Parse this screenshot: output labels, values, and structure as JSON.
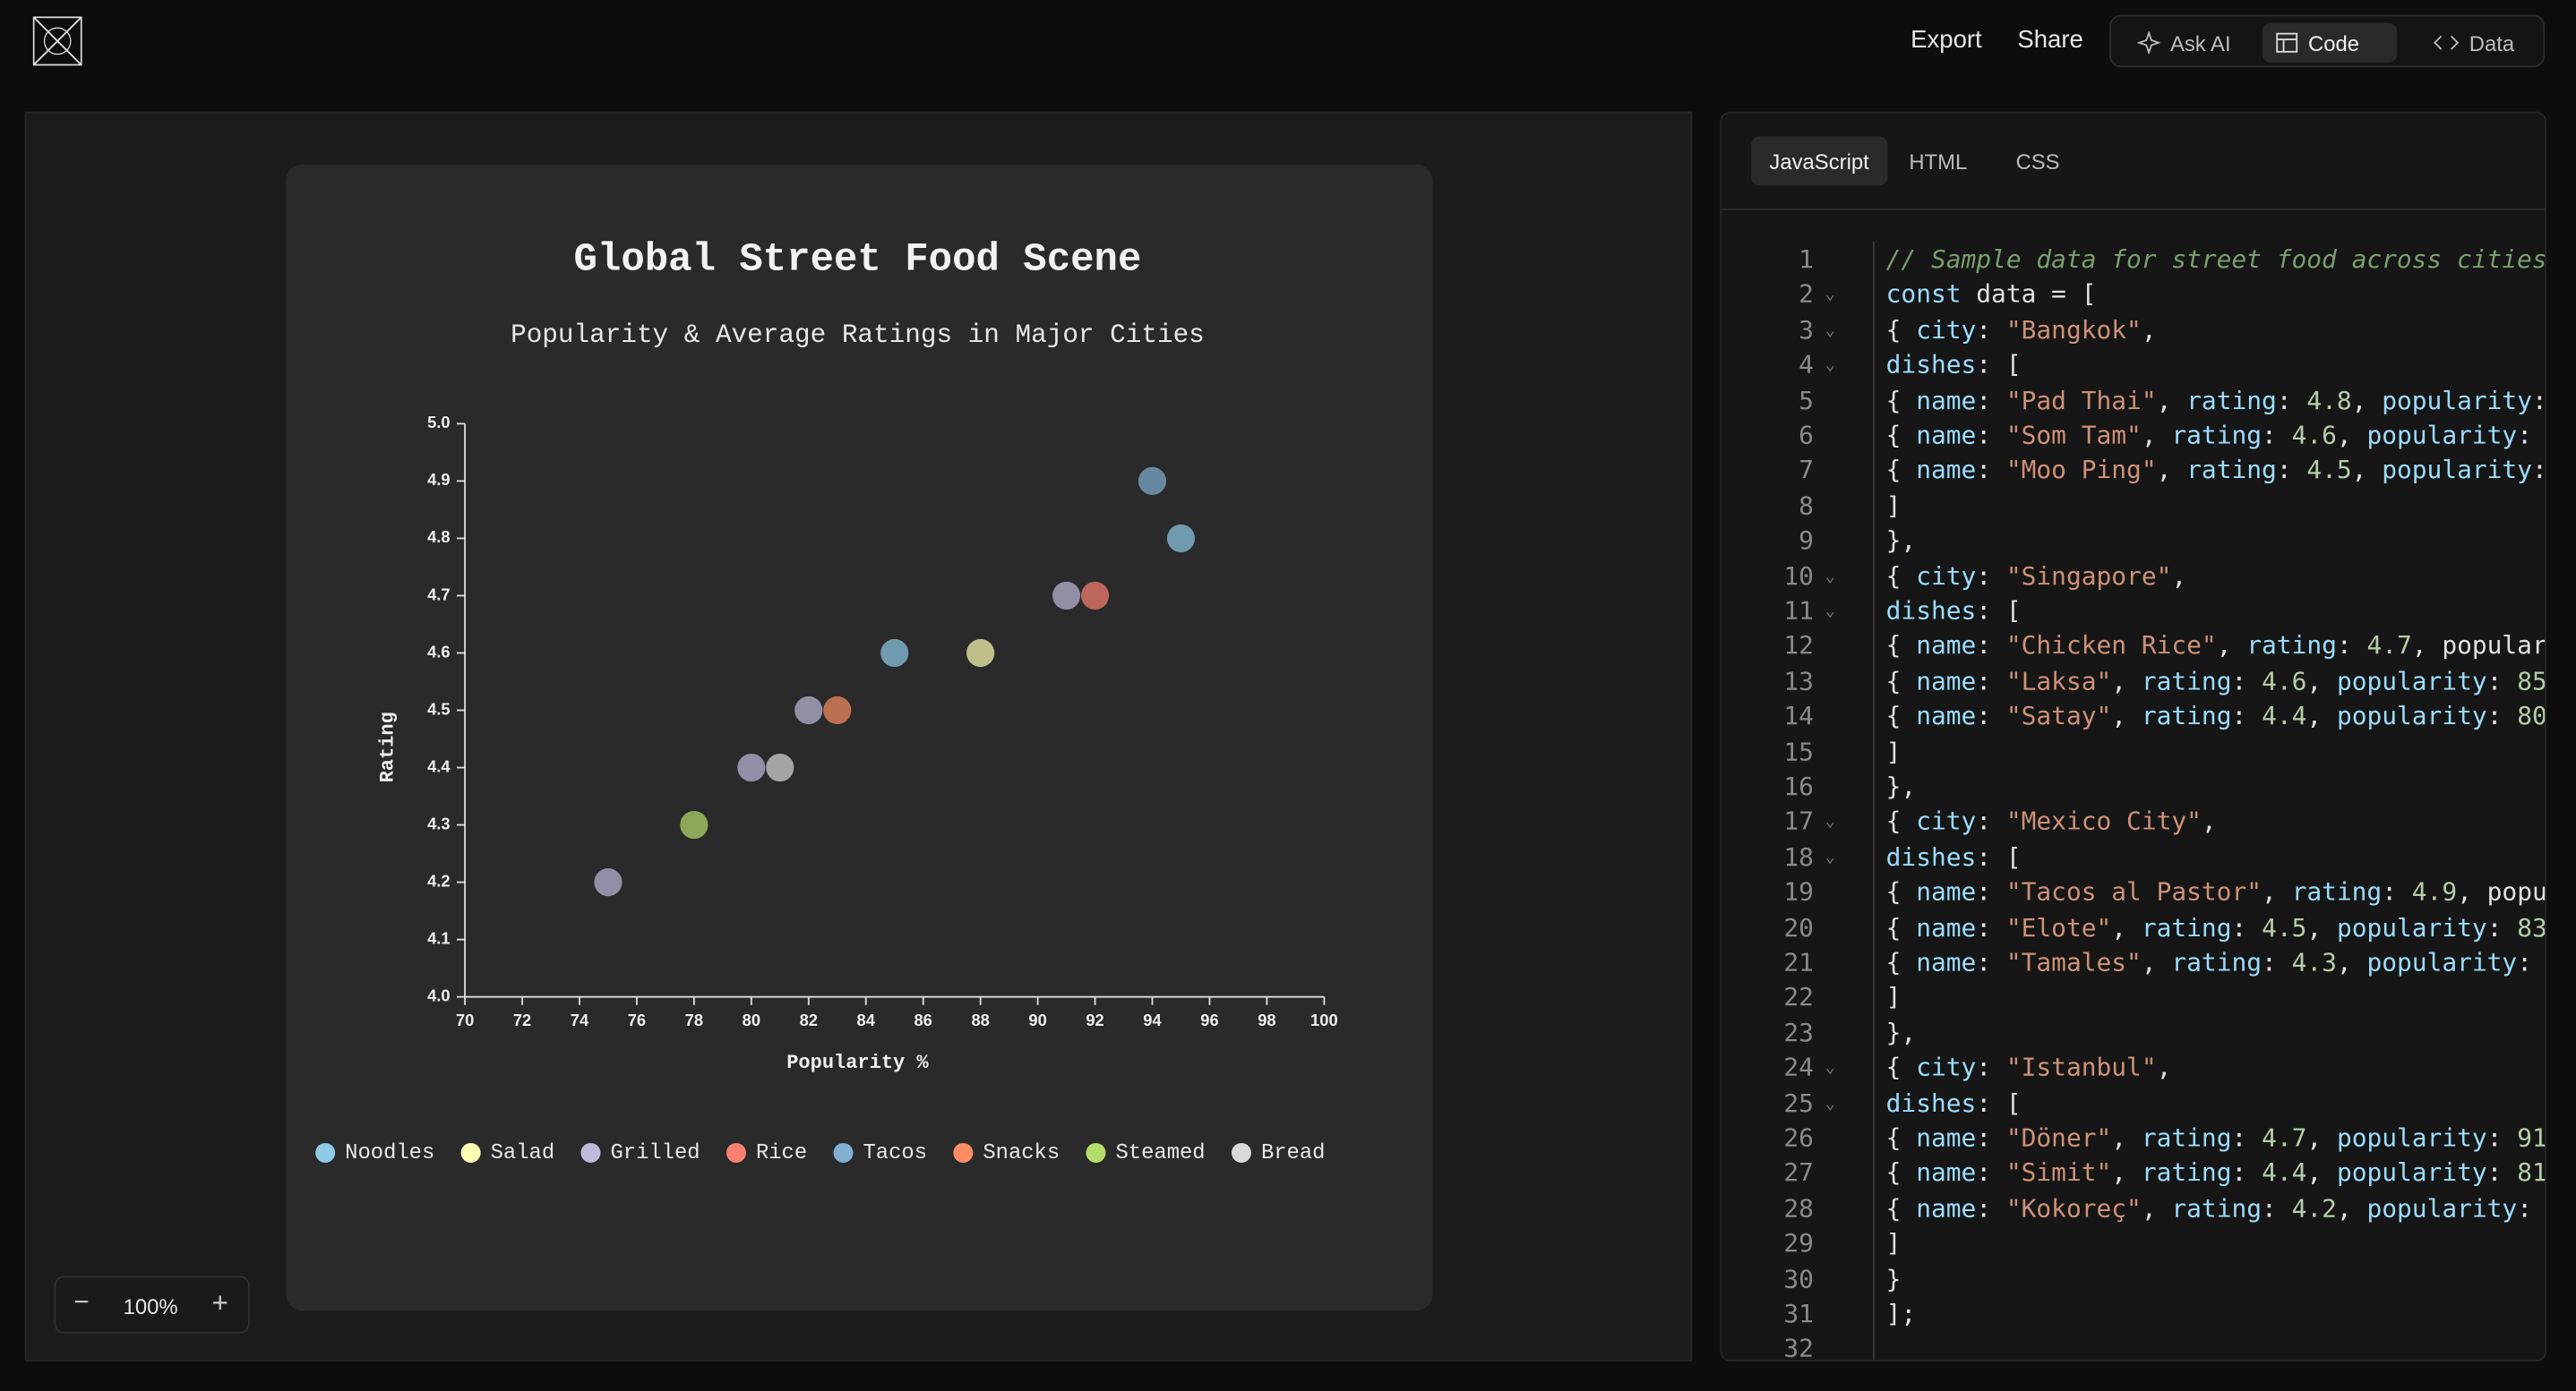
{
  "toolbar": {
    "export": "Export",
    "share": "Share",
    "ask_ai": "Ask AI",
    "code": "Code",
    "data": "Data"
  },
  "zoom": "100%",
  "chart_data": {
    "type": "scatter",
    "title": "Global Street Food Scene",
    "subtitle": "Popularity & Average Ratings in Major Cities",
    "x_label": "Popularity %",
    "y_label": "Rating",
    "xlim": [
      70,
      100
    ],
    "xticks": [
      70,
      72,
      74,
      76,
      78,
      80,
      82,
      84,
      86,
      88,
      90,
      92,
      94,
      96,
      98,
      100
    ],
    "ylim": [
      4.0,
      5.0
    ],
    "yticks": [
      {
        "value": 4.0,
        "label": "4.0"
      },
      4.1,
      4.2,
      4.3,
      4.4,
      4.5,
      4.6,
      4.7,
      4.8,
      4.9,
      {
        "value": 5.0,
        "label": "5.0"
      }
    ],
    "point_opacity": 0.7,
    "series": [
      {
        "name": "Noodles",
        "color": "#8ecae6",
        "x": [
          95,
          85
        ],
        "values": [
          4.8,
          4.6
        ]
      },
      {
        "name": "Salad",
        "color": "#ffffb3",
        "x": [
          88
        ],
        "values": [
          4.6
        ]
      },
      {
        "name": "Grilled",
        "color": "#bebada",
        "x": [
          91,
          82,
          80,
          75
        ],
        "values": [
          4.7,
          4.5,
          4.4,
          4.2
        ]
      },
      {
        "name": "Rice",
        "color": "#fb8072",
        "x": [
          92
        ],
        "values": [
          4.7
        ]
      },
      {
        "name": "Tacos",
        "color": "#80b1d3",
        "x": [
          94
        ],
        "values": [
          4.9
        ]
      },
      {
        "name": "Snacks",
        "color": "#fc8d62",
        "x": [
          83
        ],
        "values": [
          4.5
        ]
      },
      {
        "name": "Steamed",
        "color": "#b3de69",
        "x": [
          78
        ],
        "values": [
          4.3
        ]
      },
      {
        "name": "Bread",
        "color": "#d9d9d9",
        "x": [
          81
        ],
        "values": [
          4.4
        ]
      }
    ]
  },
  "editor": {
    "tabs": [
      "JavaScript",
      "HTML",
      "CSS"
    ],
    "lines": [
      {
        "number": 1,
        "text": "// Sample data for street food across cities"
      },
      {
        "number": 2,
        "text": "const data = [",
        "fold": true
      },
      {
        "number": 3,
        "text": "{ city: \"Bangkok\",",
        "fold": true
      },
      {
        "number": 4,
        "text": "dishes: [",
        "fold": true
      },
      {
        "number": 5,
        "text": "{ name: \"Pad Thai\", rating: 4.8, popularity:"
      },
      {
        "number": 6,
        "text": "{ name: \"Som Tam\", rating: 4.6, popularity:"
      },
      {
        "number": 7,
        "text": "{ name: \"Moo Ping\", rating: 4.5, popularity:"
      },
      {
        "number": 8,
        "text": "]"
      },
      {
        "number": 9,
        "text": "},"
      },
      {
        "number": 10,
        "text": "{ city: \"Singapore\",",
        "fold": true
      },
      {
        "number": 11,
        "text": "dishes: [",
        "fold": true
      },
      {
        "number": 12,
        "text": "{ name: \"Chicken Rice\", rating: 4.7, popular"
      },
      {
        "number": 13,
        "text": "{ name: \"Laksa\", rating: 4.6, popularity: 85"
      },
      {
        "number": 14,
        "text": "{ name: \"Satay\", rating: 4.4, popularity: 80"
      },
      {
        "number": 15,
        "text": "]"
      },
      {
        "number": 16,
        "text": "},"
      },
      {
        "number": 17,
        "text": "{ city: \"Mexico City\",",
        "fold": true
      },
      {
        "number": 18,
        "text": "dishes: [",
        "fold": true
      },
      {
        "number": 19,
        "text": "{ name: \"Tacos al Pastor\", rating: 4.9, popu"
      },
      {
        "number": 20,
        "text": "{ name: \"Elote\", rating: 4.5, popularity: 83"
      },
      {
        "number": 21,
        "text": "{ name: \"Tamales\", rating: 4.3, popularity:"
      },
      {
        "number": 22,
        "text": "]"
      },
      {
        "number": 23,
        "text": "},"
      },
      {
        "number": 24,
        "text": "{ city: \"Istanbul\",",
        "fold": true
      },
      {
        "number": 25,
        "text": "dishes: [",
        "fold": true
      },
      {
        "number": 26,
        "text": "{ name: \"Döner\", rating: 4.7, popularity: 91"
      },
      {
        "number": 27,
        "text": "{ name: \"Simit\", rating: 4.4, popularity: 81"
      },
      {
        "number": 28,
        "text": "{ name: \"Kokoreç\", rating: 4.2, popularity:"
      },
      {
        "number": 29,
        "text": "]"
      },
      {
        "number": 30,
        "text": "}"
      },
      {
        "number": 31,
        "text": "];"
      },
      {
        "number": 32
      }
    ]
  }
}
